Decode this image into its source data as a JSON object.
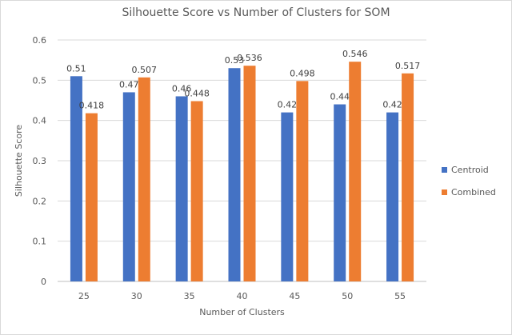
{
  "chart_data": {
    "type": "bar",
    "title": "Silhouette Score vs Number of Clusters for SOM",
    "xlabel": "Number of Clusters",
    "ylabel": "Silhouette Score",
    "categories": [
      "25",
      "30",
      "35",
      "40",
      "45",
      "50",
      "55"
    ],
    "series": [
      {
        "name": "Centroid",
        "color": "#4472C4",
        "values": [
          0.51,
          0.47,
          0.46,
          0.53,
          0.42,
          0.44,
          0.42
        ],
        "labels": [
          "0.51",
          "0.47",
          "0.46",
          "0.53",
          "0.42",
          "0.44",
          "0.42"
        ]
      },
      {
        "name": "Combined",
        "color": "#ED7D31",
        "values": [
          0.418,
          0.507,
          0.448,
          0.536,
          0.498,
          0.546,
          0.517
        ],
        "labels": [
          "0.418",
          "0.507",
          "0.448",
          "0.536",
          "0.498",
          "0.546",
          "0.517"
        ]
      }
    ],
    "ylim": [
      0,
      0.6
    ],
    "yticks": [
      "0",
      "0.1",
      "0.2",
      "0.3",
      "0.4",
      "0.5",
      "0.6"
    ],
    "grid": true,
    "legend_position": "right"
  }
}
